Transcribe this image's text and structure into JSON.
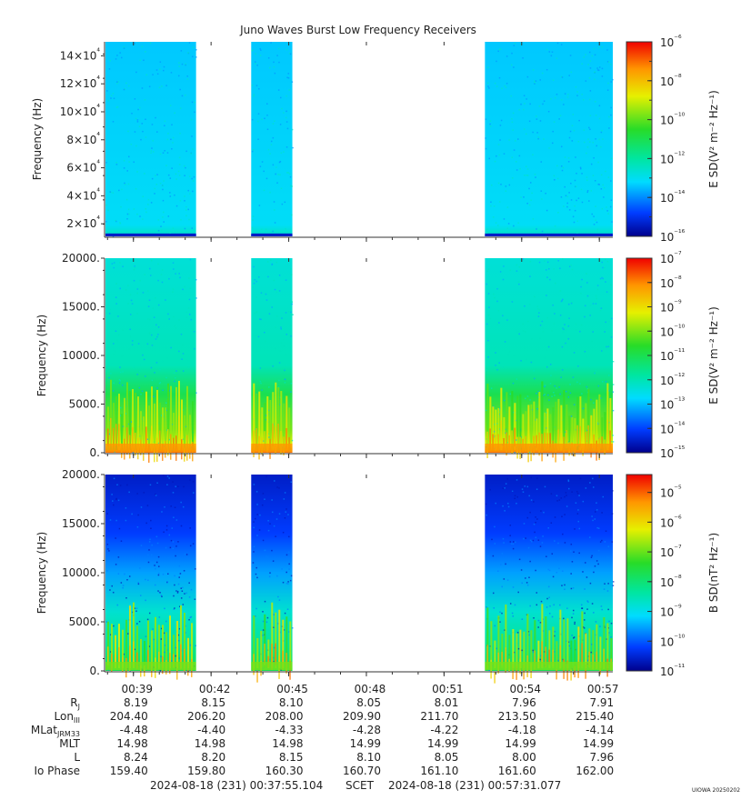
{
  "chart_data": {
    "type": "heatmap",
    "title": "Juno Waves Burst Low Frequency Receivers",
    "panels": [
      {
        "ylabel": "Frequency (Hz)",
        "ylim": [
          11000,
          150000
        ],
        "ytick_labels": [
          "2×10⁴",
          "4×10⁴",
          "6×10⁴",
          "8×10⁴",
          "10×10⁴",
          "12×10⁴",
          "14×10⁴"
        ],
        "ytick_values": [
          20000,
          40000,
          60000,
          80000,
          100000,
          120000,
          140000
        ],
        "colorbar_label": "E SD(V² m⁻² Hz⁻¹)",
        "colorbar_ticks": [
          "10⁻⁶",
          "10⁻⁸",
          "10⁻¹⁰",
          "10⁻¹²",
          "10⁻¹⁴",
          "10⁻¹⁶"
        ],
        "colorbar_range_log10": [
          -16,
          -6
        ],
        "colorbar_tick_log10": [
          -6,
          -8,
          -10,
          -12,
          -14,
          -16
        ],
        "background_level_log10": -13.3
      },
      {
        "ylabel": "Frequency (Hz)",
        "ylim": [
          0,
          20000
        ],
        "ytick_labels": [
          "0.",
          "5000.",
          "10000.",
          "15000.",
          "20000."
        ],
        "ytick_values": [
          0,
          5000,
          10000,
          15000,
          20000
        ],
        "colorbar_label": "E SD(V² m⁻² Hz⁻¹)",
        "colorbar_ticks": [
          "10⁻⁷",
          "10⁻⁸",
          "10⁻⁹",
          "10⁻¹⁰",
          "10⁻¹¹",
          "10⁻¹²",
          "10⁻¹³",
          "10⁻¹⁴",
          "10⁻¹⁵"
        ],
        "colorbar_range_log10": [
          -15,
          -7
        ],
        "colorbar_tick_log10": [
          -7,
          -8,
          -9,
          -10,
          -11,
          -12,
          -13,
          -14,
          -15
        ],
        "background_level_log10": -12.7
      },
      {
        "ylabel": "Frequency (Hz)",
        "ylim": [
          0,
          20000
        ],
        "ytick_labels": [
          "0.",
          "5000.",
          "10000.",
          "15000.",
          "20000."
        ],
        "ytick_values": [
          0,
          5000,
          10000,
          15000,
          20000
        ],
        "colorbar_label": "B SD(nT² Hz⁻¹)",
        "colorbar_ticks": [
          "10⁻⁵",
          "10⁻⁶",
          "10⁻⁷",
          "10⁻⁸",
          "10⁻⁹",
          "10⁻¹⁰",
          "10⁻¹¹"
        ],
        "colorbar_range_log10": [
          -11,
          -4.4
        ],
        "colorbar_tick_log10": [
          -5,
          -6,
          -7,
          -8,
          -9,
          -10,
          -11
        ],
        "background_level_log10": -10.3
      }
    ],
    "x_axis": {
      "time_range": [
        "00:37:55.104",
        "00:57:31.077"
      ],
      "tick_labels": [
        "00:39",
        "00:42",
        "00:45",
        "00:48",
        "00:51",
        "00:54",
        "00:57"
      ],
      "tick_minutes": [
        39,
        42,
        45,
        48,
        51,
        54,
        57
      ]
    },
    "data_intervals_minutes": [
      [
        37.92,
        41.42
      ],
      [
        43.55,
        45.14
      ],
      [
        52.58,
        57.52
      ]
    ],
    "ephemeris": [
      {
        "label": "Rj",
        "values": [
          "8.19",
          "8.15",
          "8.10",
          "8.05",
          "8.01",
          "7.96",
          "7.91"
        ]
      },
      {
        "label": "LonIII",
        "values": [
          "204.40",
          "206.20",
          "208.00",
          "209.90",
          "211.70",
          "213.50",
          "215.40"
        ]
      },
      {
        "label": "MLatJRM33",
        "values": [
          "-4.48",
          "-4.40",
          "-4.33",
          "-4.28",
          "-4.22",
          "-4.18",
          "-4.14"
        ]
      },
      {
        "label": "MLT",
        "values": [
          "14.98",
          "14.98",
          "14.98",
          "14.99",
          "14.99",
          "14.99",
          "14.99"
        ]
      },
      {
        "label": "L",
        "values": [
          "8.24",
          "8.20",
          "8.15",
          "8.10",
          "8.05",
          "8.00",
          "7.96"
        ]
      },
      {
        "label": "Io Phase",
        "values": [
          "159.40",
          "159.80",
          "160.30",
          "160.70",
          "161.10",
          "161.60",
          "162.00"
        ]
      }
    ],
    "footer": {
      "start": "2024-08-18 (231) 00:37:55.104",
      "scet": "SCET",
      "end": "2024-08-18 (231) 00:57:31.077"
    },
    "credit": "UIOWA 20250202"
  }
}
